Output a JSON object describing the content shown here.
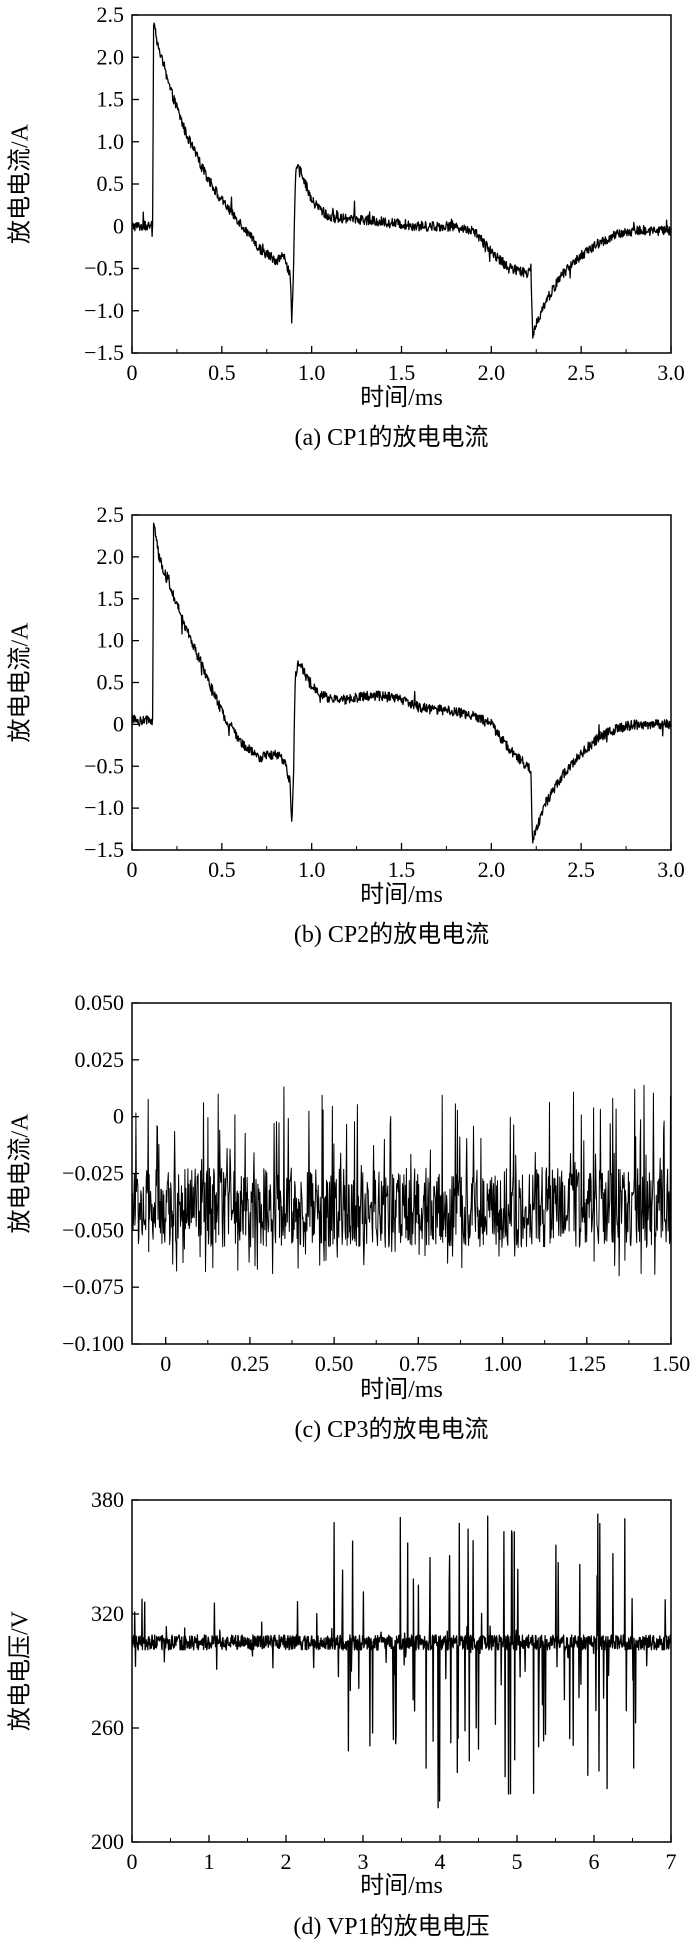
{
  "chart_data": [
    {
      "type": "line",
      "caption": "(a) CP1的放电电流",
      "xlabel": "时间/ms",
      "ylabel": "放电电流/A",
      "xlim": [
        0,
        3.0
      ],
      "ylim": [
        -1.5,
        2.5
      ],
      "x_ticks": [
        0,
        0.5,
        1.0,
        1.5,
        2.0,
        2.5,
        3.0
      ],
      "x_tick_labels": [
        "0",
        "0.5",
        "1.0",
        "1.5",
        "2.0",
        "2.5",
        "3.0"
      ],
      "y_ticks": [
        2.5,
        2.0,
        1.5,
        1.0,
        0.5,
        0,
        -0.5,
        -1.0,
        -1.5
      ],
      "y_tick_labels": [
        "2.5",
        "2.0",
        "1.5",
        "1.0",
        "0.5",
        "0",
        "−0.5",
        "−1.0",
        "−1.5"
      ],
      "grid": false,
      "noise": 0.06,
      "series": [
        {
          "x": [
            0,
            0.05,
            0.1,
            0.115,
            0.12,
            0.15,
            0.2,
            0.3,
            0.4,
            0.5,
            0.6,
            0.7,
            0.8,
            0.85,
            0.88,
            0.89,
            0.9,
            0.905,
            0.91,
            0.93,
            0.95,
            1.0,
            1.1,
            1.2,
            1.4,
            1.6,
            1.8,
            1.9,
            2.0,
            2.1,
            2.2,
            2.22,
            2.23,
            2.24,
            2.3,
            2.4,
            2.5,
            2.6,
            2.7,
            2.8,
            3.0
          ],
          "y": [
            0.0,
            0.0,
            0.0,
            0.0,
            2.42,
            2.1,
            1.7,
            1.1,
            0.65,
            0.3,
            0.05,
            -0.25,
            -0.4,
            -0.35,
            -0.6,
            -1.15,
            -0.5,
            0.2,
            0.6,
            0.75,
            0.6,
            0.3,
            0.1,
            0.1,
            0.05,
            0.0,
            0.0,
            -0.05,
            -0.3,
            -0.5,
            -0.55,
            -0.5,
            -1.3,
            -1.2,
            -0.9,
            -0.55,
            -0.35,
            -0.2,
            -0.1,
            -0.05,
            -0.05
          ]
        }
      ]
    },
    {
      "type": "line",
      "caption": "(b) CP2的放电电流",
      "xlabel": "时间/ms",
      "ylabel": "放电电流/A",
      "xlim": [
        0,
        3.0
      ],
      "ylim": [
        -1.5,
        2.5
      ],
      "x_ticks": [
        0,
        0.5,
        1.0,
        1.5,
        2.0,
        2.5,
        3.0
      ],
      "x_tick_labels": [
        "0",
        "0.5",
        "1.0",
        "1.5",
        "2.0",
        "2.5",
        "3.0"
      ],
      "y_ticks": [
        2.5,
        2.0,
        1.5,
        1.0,
        0.5,
        0,
        -0.5,
        -1.0,
        -1.5
      ],
      "y_tick_labels": [
        "2.5",
        "2.0",
        "1.5",
        "1.0",
        "0.5",
        "0",
        "−0.5",
        "−1.0",
        "−1.5"
      ],
      "grid": false,
      "noise": 0.06,
      "series": [
        {
          "x": [
            0,
            0.05,
            0.1,
            0.115,
            0.12,
            0.15,
            0.2,
            0.3,
            0.4,
            0.5,
            0.6,
            0.7,
            0.8,
            0.85,
            0.88,
            0.89,
            0.9,
            0.905,
            0.91,
            0.93,
            0.95,
            1.0,
            1.1,
            1.2,
            1.35,
            1.5,
            1.6,
            1.8,
            1.9,
            2.0,
            2.1,
            2.2,
            2.22,
            2.23,
            2.24,
            2.3,
            2.4,
            2.5,
            2.6,
            2.7,
            2.8,
            3.0
          ],
          "y": [
            0.05,
            0.05,
            0.05,
            0.05,
            2.45,
            2.0,
            1.7,
            1.15,
            0.65,
            0.15,
            -0.2,
            -0.4,
            -0.35,
            -0.45,
            -0.7,
            -1.25,
            -0.5,
            0.2,
            0.6,
            0.75,
            0.65,
            0.45,
            0.3,
            0.3,
            0.35,
            0.3,
            0.2,
            0.15,
            0.1,
            0.0,
            -0.3,
            -0.5,
            -0.55,
            -1.45,
            -1.3,
            -0.95,
            -0.6,
            -0.35,
            -0.15,
            -0.05,
            0.0,
            0.0
          ]
        }
      ]
    },
    {
      "type": "line",
      "caption": "(c) CP3的放电电流",
      "xlabel": "时间/ms",
      "ylabel": "放电电流/A",
      "xlim": [
        -0.1,
        1.5
      ],
      "ylim": [
        -0.1,
        0.05
      ],
      "x_ticks": [
        0,
        0.25,
        0.5,
        0.75,
        1.0,
        1.25,
        1.5
      ],
      "x_tick_labels": [
        "0",
        "0.25",
        "0.50",
        "0.75",
        "1.00",
        "1.25",
        "1.50"
      ],
      "y_ticks": [
        0.05,
        0.025,
        0,
        -0.025,
        -0.05,
        -0.075,
        -0.1
      ],
      "y_tick_labels": [
        "0.050",
        "0.025",
        "0",
        "−0.025",
        "−0.050",
        "−0.075",
        "−0.100"
      ],
      "grid": false,
      "noise": 0.0,
      "noise_band": [
        -0.07,
        0.014
      ],
      "series": [
        {
          "x": [
            -0.1,
            1.5
          ],
          "y": [
            -0.04,
            -0.04
          ]
        }
      ]
    },
    {
      "type": "line",
      "caption": "(d) VP1的放电电压",
      "xlabel": "时间/ms",
      "ylabel": "放电电压/V",
      "xlim": [
        0,
        7
      ],
      "ylim": [
        200,
        380
      ],
      "x_ticks": [
        0,
        1,
        2,
        3,
        4,
        5,
        6,
        7
      ],
      "x_tick_labels": [
        "0",
        "1",
        "2",
        "3",
        "4",
        "5",
        "6",
        "7"
      ],
      "y_ticks": [
        380,
        320,
        260,
        200
      ],
      "y_tick_labels": [
        "380",
        "320",
        "260",
        "200"
      ],
      "grid": false,
      "baseline": 305,
      "spikes_range": [
        212,
        367
      ],
      "series": [
        {
          "x": [
            0,
            7
          ],
          "y": [
            305,
            305
          ]
        }
      ]
    }
  ]
}
